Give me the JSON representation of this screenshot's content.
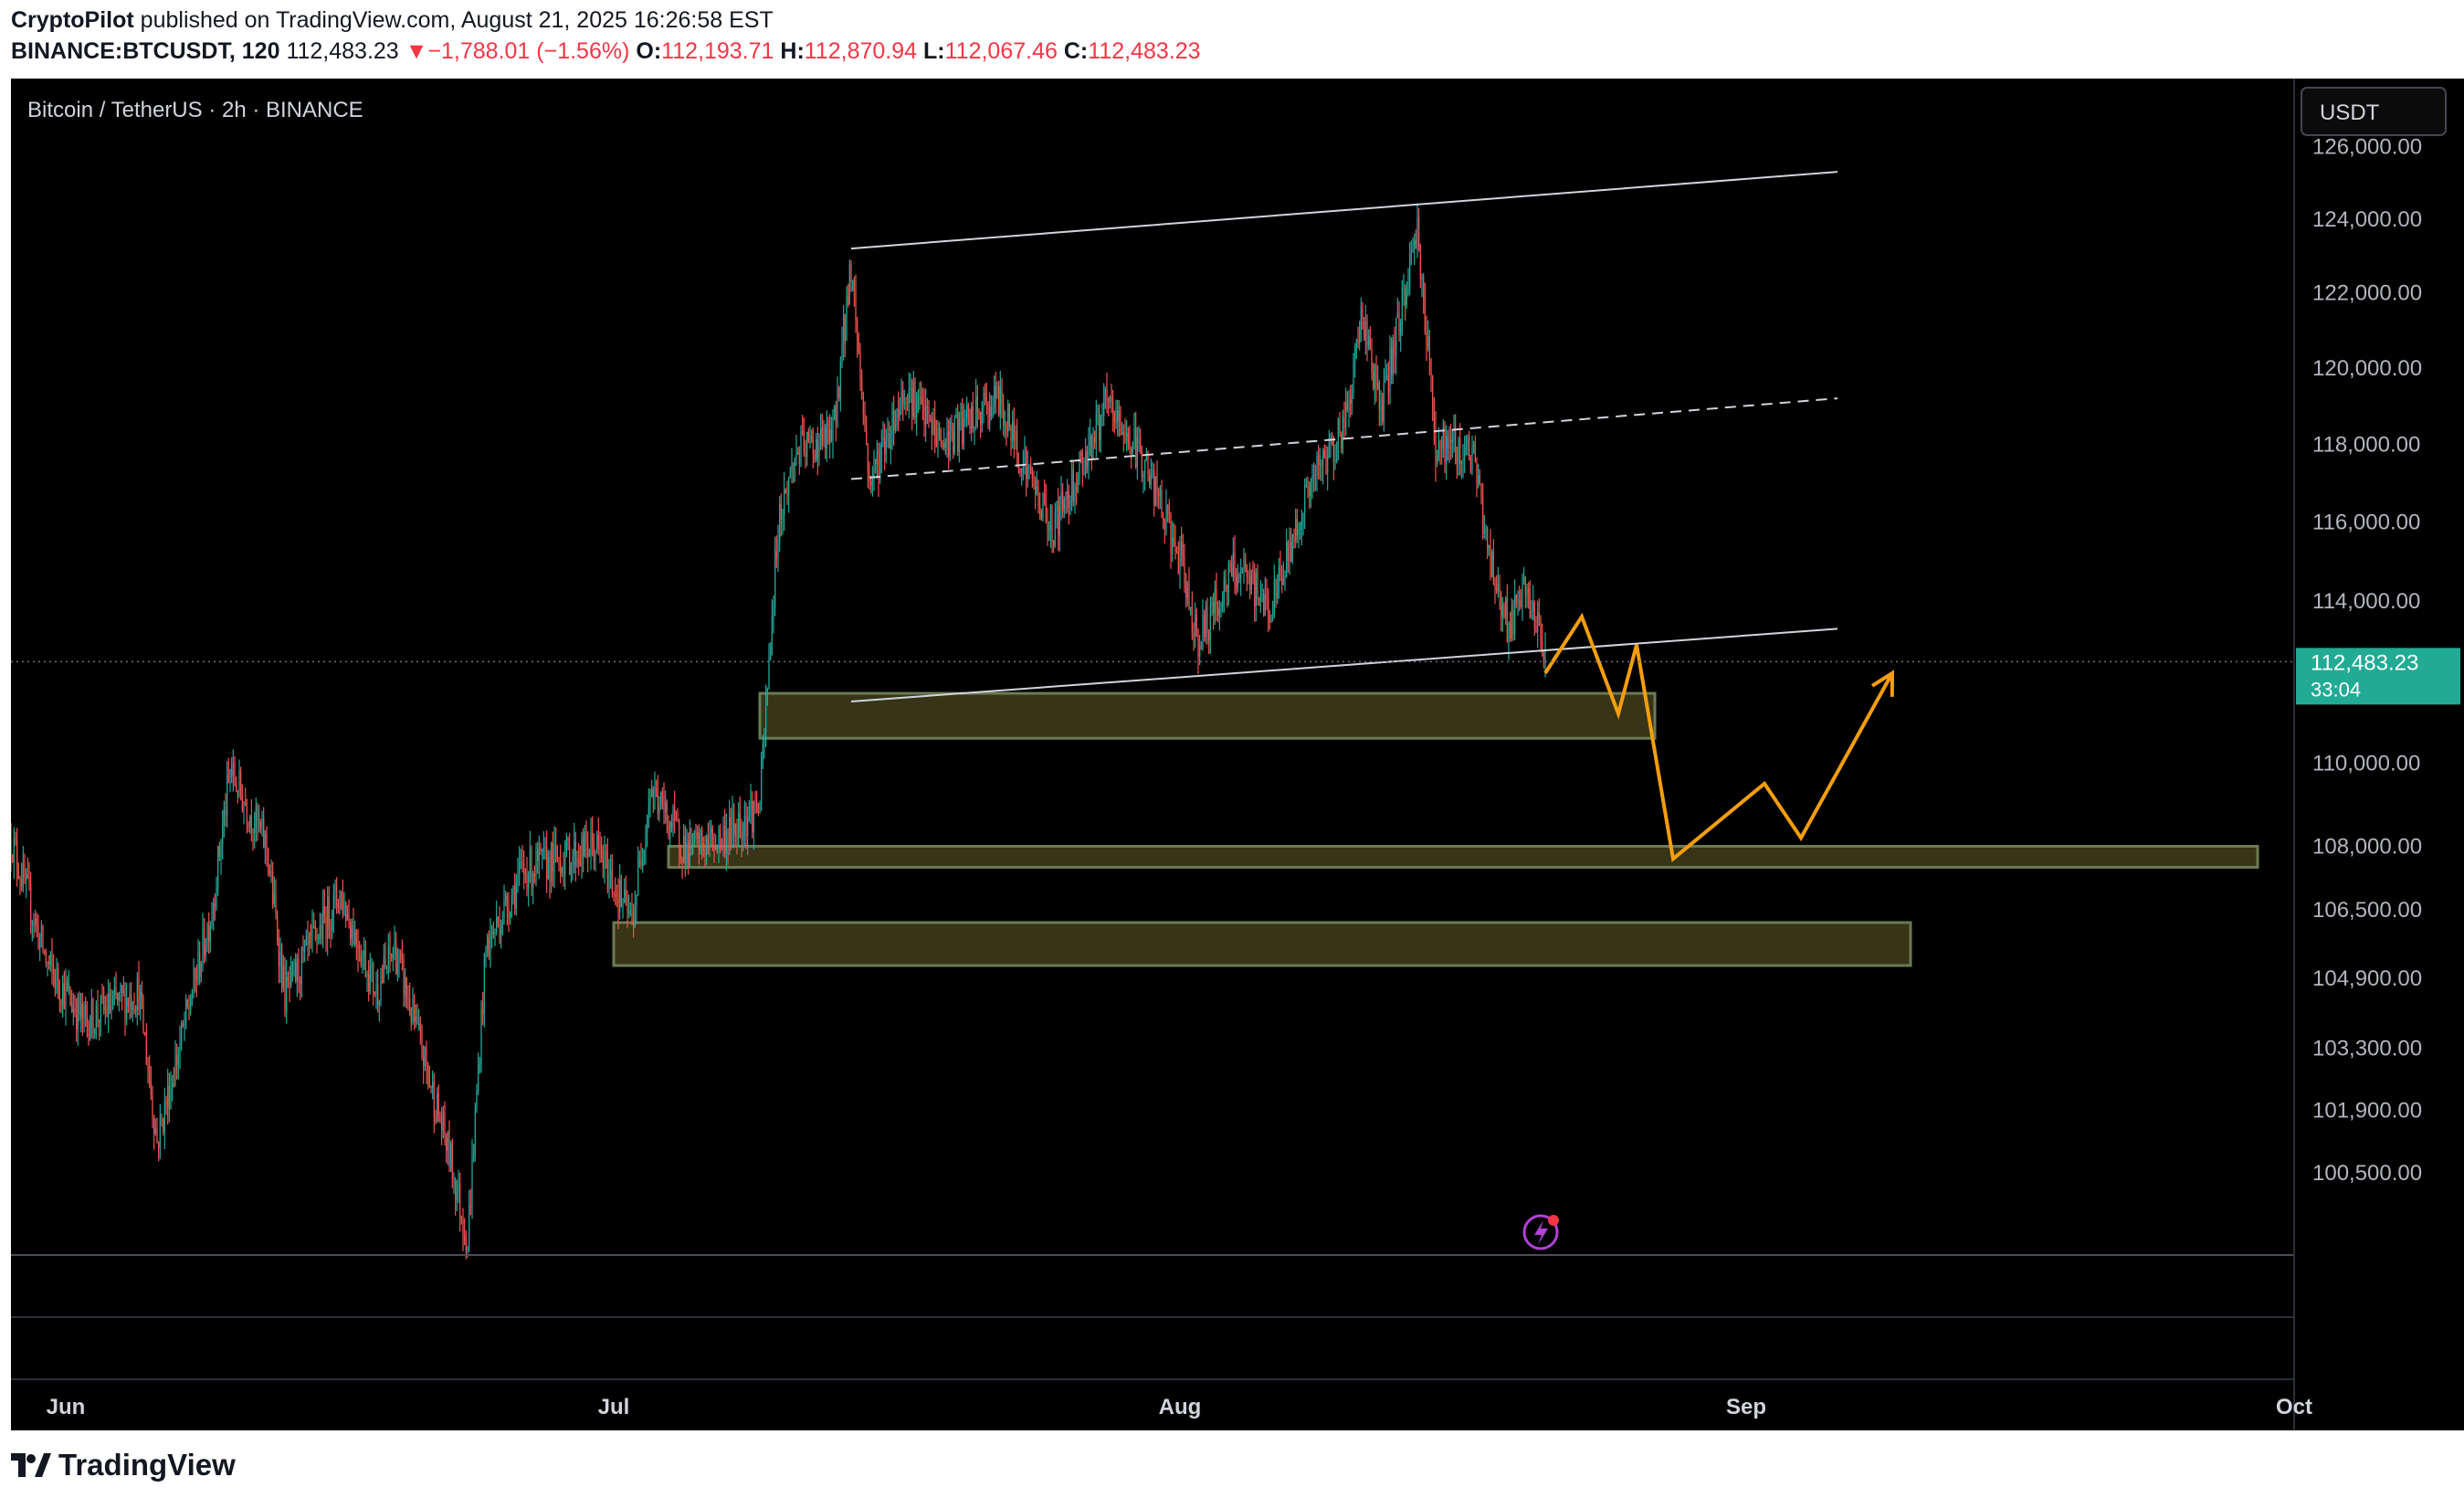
{
  "header": {
    "author": "CryptoPilot",
    "published_text": "published on TradingView.com, August 21, 2025 16:26:58 EST",
    "symbol": "BINANCE:BTCUSDT, 120",
    "last": "112,483.23",
    "change_arrow": "▼",
    "change": "−1,788.01 (−1.56%)",
    "o_label": "O:",
    "o_value": "112,193.71",
    "h_label": "H:",
    "h_value": "112,870.94",
    "l_label": "L:",
    "l_value": "112,067.46",
    "c_label": "C:",
    "c_value": "112,483.23"
  },
  "chart": {
    "legend_title": "Bitcoin / TetherUS · 2h · BINANCE",
    "currency_button": "USDT",
    "price_label": "112,483.23",
    "countdown": "33:04",
    "watermark_icon": "lightning-bolt-icon"
  },
  "footer": {
    "brand": "TradingView",
    "logo_icon": "tradingview-logo-icon"
  },
  "colors": {
    "background": "#000000",
    "up_candle": "#26a69a",
    "down_candle": "#ef5350",
    "zone_fill": "#3d3a1a",
    "zone_border": "#6b7b55",
    "projection": "#f59e0b",
    "channel": "#d1d4dc",
    "price_badge": "#22ab94"
  },
  "chart_data": {
    "type": "candlestick",
    "title": "Bitcoin / TetherUS · 2h · BINANCE",
    "x_tick_labels": [
      "Jun",
      "Jul",
      "Aug",
      "Sep",
      "Oct"
    ],
    "y_tick_labels": [
      "126,000.00",
      "124,000.00",
      "122,000.00",
      "120,000.00",
      "118,000.00",
      "116,000.00",
      "114,000.00",
      "110,000.00",
      "108,000.00",
      "106,500.00",
      "104,900.00",
      "103,300.00",
      "101,900.00",
      "100,500.00"
    ],
    "y_scale": "log",
    "y_range": [
      98700,
      127900
    ],
    "x_range": [
      "2025-05-29",
      "2025-10-01"
    ],
    "last_price": 112483.23,
    "price_anchors": [
      {
        "date": "2025-05-29",
        "price": 108200
      },
      {
        "date": "2025-05-31",
        "price": 105200
      },
      {
        "date": "2025-06-02",
        "price": 103900
      },
      {
        "date": "2025-06-05",
        "price": 104600
      },
      {
        "date": "2025-06-06",
        "price": 101200
      },
      {
        "date": "2025-06-09",
        "price": 106500
      },
      {
        "date": "2025-06-10",
        "price": 109800
      },
      {
        "date": "2025-06-12",
        "price": 108000
      },
      {
        "date": "2025-06-13",
        "price": 104500
      },
      {
        "date": "2025-06-16",
        "price": 106900
      },
      {
        "date": "2025-06-18",
        "price": 104600
      },
      {
        "date": "2025-06-19",
        "price": 105600
      },
      {
        "date": "2025-06-22",
        "price": 100900
      },
      {
        "date": "2025-06-23",
        "price": 99000
      },
      {
        "date": "2025-06-24",
        "price": 105600
      },
      {
        "date": "2025-06-26",
        "price": 107400
      },
      {
        "date": "2025-06-30",
        "price": 108000
      },
      {
        "date": "2025-07-02",
        "price": 106200
      },
      {
        "date": "2025-07-03",
        "price": 109400
      },
      {
        "date": "2025-07-05",
        "price": 107900
      },
      {
        "date": "2025-07-07",
        "price": 108200
      },
      {
        "date": "2025-07-09",
        "price": 109000
      },
      {
        "date": "2025-07-10",
        "price": 116000
      },
      {
        "date": "2025-07-11",
        "price": 117800
      },
      {
        "date": "2025-07-13",
        "price": 118200
      },
      {
        "date": "2025-07-14",
        "price": 122800
      },
      {
        "date": "2025-07-15",
        "price": 117000
      },
      {
        "date": "2025-07-17",
        "price": 119500
      },
      {
        "date": "2025-07-19",
        "price": 118000
      },
      {
        "date": "2025-07-22",
        "price": 119200
      },
      {
        "date": "2025-07-25",
        "price": 115800
      },
      {
        "date": "2025-07-28",
        "price": 119000
      },
      {
        "date": "2025-07-30",
        "price": 117600
      },
      {
        "date": "2025-08-01",
        "price": 115000
      },
      {
        "date": "2025-08-02",
        "price": 113000
      },
      {
        "date": "2025-08-04",
        "price": 114800
      },
      {
        "date": "2025-08-06",
        "price": 113800
      },
      {
        "date": "2025-08-08",
        "price": 116800
      },
      {
        "date": "2025-08-10",
        "price": 118500
      },
      {
        "date": "2025-08-11",
        "price": 121500
      },
      {
        "date": "2025-08-12",
        "price": 118800
      },
      {
        "date": "2025-08-14",
        "price": 123800
      },
      {
        "date": "2025-08-15",
        "price": 118000
      },
      {
        "date": "2025-08-17",
        "price": 117800
      },
      {
        "date": "2025-08-18",
        "price": 115000
      },
      {
        "date": "2025-08-19",
        "price": 113300
      },
      {
        "date": "2025-08-20",
        "price": 114300
      },
      {
        "date": "2025-08-21",
        "price": 112483
      }
    ],
    "channel_lines": [
      {
        "style": "solid",
        "from": {
          "date": "2025-07-14",
          "price": 123200
        },
        "to": {
          "date": "2025-09-06",
          "price": 125300
        }
      },
      {
        "style": "dashed",
        "from": {
          "date": "2025-07-14",
          "price": 117100
        },
        "to": {
          "date": "2025-09-06",
          "price": 119200
        }
      },
      {
        "style": "solid",
        "from": {
          "date": "2025-07-14",
          "price": 111500
        },
        "to": {
          "date": "2025-09-06",
          "price": 113300
        }
      }
    ],
    "zones": [
      {
        "from": "2025-07-09",
        "to": "2025-08-27",
        "price_top": 111700,
        "price_bottom": 110600
      },
      {
        "from": "2025-07-04",
        "to": "2025-09-29",
        "price_top": 108000,
        "price_bottom": 107500
      },
      {
        "from": "2025-07-01",
        "to": "2025-09-10",
        "price_top": 106200,
        "price_bottom": 105200
      }
    ],
    "projection": [
      {
        "date": "2025-08-21",
        "price": 112200
      },
      {
        "date": "2025-08-23",
        "price": 113600
      },
      {
        "date": "2025-08-25",
        "price": 111200
      },
      {
        "date": "2025-08-26",
        "price": 112900
      },
      {
        "date": "2025-08-28",
        "price": 107700
      },
      {
        "date": "2025-09-02",
        "price": 109500
      },
      {
        "date": "2025-09-04",
        "price": 108200
      },
      {
        "date": "2025-09-09",
        "price": 112200
      }
    ]
  }
}
